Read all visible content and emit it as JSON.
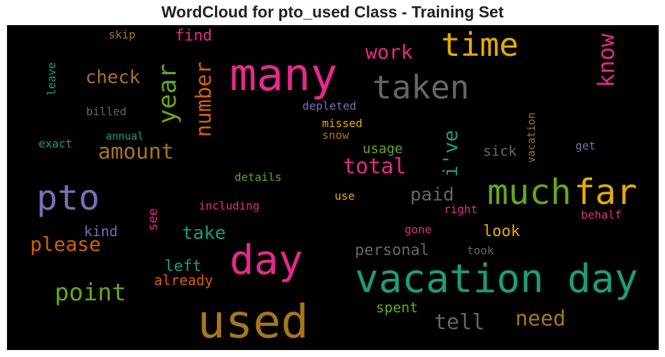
{
  "chart_data": {
    "type": "wordcloud",
    "title": "WordCloud for pto_used Class - Training Set",
    "words": [
      {
        "text": "used",
        "size": 66,
        "color": "#a6761d",
        "vertical": false
      },
      {
        "text": "vacation day",
        "size": 56,
        "color": "#1b9e77",
        "vertical": false
      },
      {
        "text": "many",
        "size": 64,
        "color": "#e7298a",
        "vertical": false
      },
      {
        "text": "day",
        "size": 58,
        "color": "#e7298a",
        "vertical": false
      },
      {
        "text": "taken",
        "size": 46,
        "color": "#666666",
        "vertical": false
      },
      {
        "text": "much",
        "size": 50,
        "color": "#66a61e",
        "vertical": false
      },
      {
        "text": "far",
        "size": 50,
        "color": "#e6ab02",
        "vertical": false
      },
      {
        "text": "pto",
        "size": 50,
        "color": "#7570b3",
        "vertical": false
      },
      {
        "text": "time",
        "size": 46,
        "color": "#e6ab02",
        "vertical": false
      },
      {
        "text": "year",
        "size": 36,
        "color": "#66a61e",
        "vertical": true
      },
      {
        "text": "know",
        "size": 32,
        "color": "#e7298a",
        "vertical": true
      },
      {
        "text": "point",
        "size": 34,
        "color": "#66a61e",
        "vertical": false
      },
      {
        "text": "number",
        "size": 30,
        "color": "#d95f02",
        "vertical": true
      },
      {
        "text": "amount",
        "size": 30,
        "color": "#a6761d",
        "vertical": false
      },
      {
        "text": "total",
        "size": 30,
        "color": "#e7298a",
        "vertical": false
      },
      {
        "text": "i've",
        "size": 28,
        "color": "#1b9e77",
        "vertical": true
      },
      {
        "text": "please",
        "size": 28,
        "color": "#d95f02",
        "vertical": false
      },
      {
        "text": "tell",
        "size": 30,
        "color": "#666666",
        "vertical": false
      },
      {
        "text": "need",
        "size": 30,
        "color": "#a6761d",
        "vertical": false
      },
      {
        "text": "work",
        "size": 28,
        "color": "#e7298a",
        "vertical": false
      },
      {
        "text": "check",
        "size": 26,
        "color": "#a6761d",
        "vertical": false
      },
      {
        "text": "paid",
        "size": 26,
        "color": "#666666",
        "vertical": false
      },
      {
        "text": "take",
        "size": 26,
        "color": "#1b9e77",
        "vertical": false
      },
      {
        "text": "find",
        "size": 22,
        "color": "#e7298a",
        "vertical": false
      },
      {
        "text": "personal",
        "size": 22,
        "color": "#666666",
        "vertical": false
      },
      {
        "text": "left",
        "size": 22,
        "color": "#1b9e77",
        "vertical": false
      },
      {
        "text": "look",
        "size": 22,
        "color": "#e6ab02",
        "vertical": false
      },
      {
        "text": "kind",
        "size": 20,
        "color": "#7570b3",
        "vertical": false
      },
      {
        "text": "sick",
        "size": 20,
        "color": "#666666",
        "vertical": false
      },
      {
        "text": "usage",
        "size": 19,
        "color": "#66a61e",
        "vertical": false
      },
      {
        "text": "already",
        "size": 20,
        "color": "#d95f02",
        "vertical": false
      },
      {
        "text": "spent",
        "size": 20,
        "color": "#66a61e",
        "vertical": false
      },
      {
        "text": "see",
        "size": 18,
        "color": "#e7298a",
        "vertical": true
      },
      {
        "text": "leave",
        "size": 16,
        "color": "#1b9e77",
        "vertical": true
      },
      {
        "text": "vacation",
        "size": 15,
        "color": "#a6761d",
        "vertical": true
      },
      {
        "text": "skip",
        "size": 16,
        "color": "#a6761d",
        "vertical": false
      },
      {
        "text": "billed",
        "size": 16,
        "color": "#666666",
        "vertical": false
      },
      {
        "text": "depleted",
        "size": 16,
        "color": "#7570b3",
        "vertical": false
      },
      {
        "text": "missed",
        "size": 16,
        "color": "#e6ab02",
        "vertical": false
      },
      {
        "text": "snow",
        "size": 16,
        "color": "#a6761d",
        "vertical": false
      },
      {
        "text": "annual",
        "size": 15,
        "color": "#1b9e77",
        "vertical": false
      },
      {
        "text": "exact",
        "size": 16,
        "color": "#1b9e77",
        "vertical": false
      },
      {
        "text": "details",
        "size": 16,
        "color": "#66a61e",
        "vertical": false
      },
      {
        "text": "get",
        "size": 16,
        "color": "#7570b3",
        "vertical": false
      },
      {
        "text": "including",
        "size": 16,
        "color": "#e7298a",
        "vertical": false
      },
      {
        "text": "use",
        "size": 16,
        "color": "#e6ab02",
        "vertical": false
      },
      {
        "text": "right",
        "size": 16,
        "color": "#e7298a",
        "vertical": false
      },
      {
        "text": "behalf",
        "size": 16,
        "color": "#e7298a",
        "vertical": false
      },
      {
        "text": "gone",
        "size": 16,
        "color": "#e7298a",
        "vertical": false
      },
      {
        "text": "took",
        "size": 16,
        "color": "#666666",
        "vertical": false
      }
    ]
  }
}
